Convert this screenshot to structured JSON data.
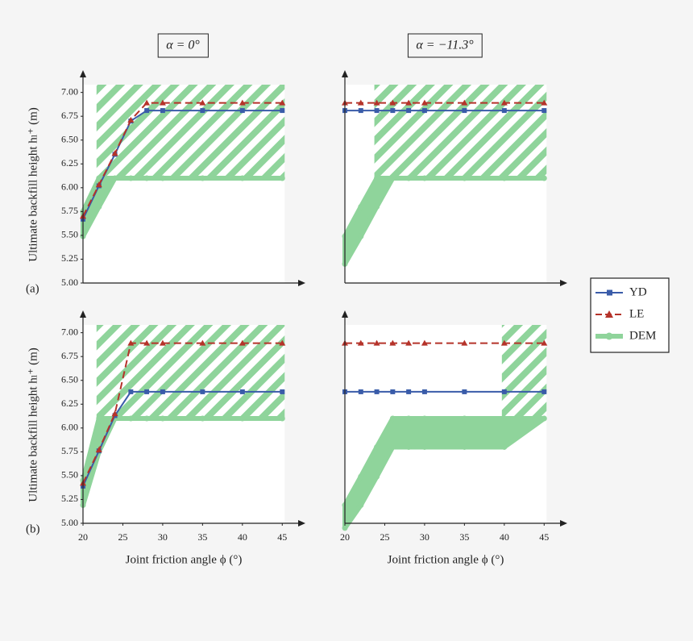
{
  "chart_data": [
    {
      "type": "line",
      "title": "α = 0°",
      "panel_label": "(a)",
      "y_label": "Ultimate backfill height hₗ⁺ (m)",
      "x": [
        20,
        22,
        24,
        26,
        28,
        30,
        35,
        40,
        45
      ],
      "xlim": [
        20,
        47.5
      ],
      "ylim": [
        5,
        7.2
      ],
      "yticks": [
        {
          "value": 5,
          "label": "5.00"
        },
        {
          "value": 5.25,
          "label": "5.25"
        },
        {
          "value": 5.5,
          "label": "5.50"
        },
        {
          "value": 5.75,
          "label": "5.75"
        },
        {
          "value": 6,
          "label": "6.00"
        },
        {
          "value": 6.25,
          "label": "6.25"
        },
        {
          "value": 6.5,
          "label": "6.50"
        },
        {
          "value": 6.75,
          "label": "6.75"
        },
        {
          "value": 7,
          "label": "7.00"
        }
      ],
      "legend": "right",
      "series": [
        {
          "name": "YD",
          "color": "#3a5ca9",
          "marker": "square",
          "values": [
            5.67,
            6.02,
            6.35,
            6.7,
            6.81,
            6.81,
            6.81,
            6.81,
            6.81
          ]
        },
        {
          "name": "LE",
          "color": "#b5332a",
          "marker": "triangle",
          "dash": true,
          "values": [
            5.7,
            6.03,
            6.36,
            6.71,
            6.89,
            6.89,
            6.89,
            6.89,
            6.89
          ]
        },
        {
          "name": "DEM",
          "color": "#8fd49b",
          "marker": "circle",
          "values": [
            5.49,
            5.8,
            6.1,
            6.1,
            6.1,
            6.1,
            6.1,
            6.1,
            6.1
          ],
          "upper": [
            5.75,
            6.1,
            null,
            null,
            null,
            null,
            null,
            null,
            null
          ]
        }
      ]
    },
    {
      "type": "line",
      "title": "α = −11.3°",
      "x": [
        20,
        22,
        24,
        26,
        28,
        30,
        35,
        40,
        45
      ],
      "xlim": [
        20,
        47.5
      ],
      "ylim": [
        5,
        7.2
      ],
      "series": [
        {
          "color": "#3a5ca9",
          "marker": "square",
          "values": [
            6.81,
            6.81,
            6.81,
            6.81,
            6.81,
            6.81,
            6.81,
            6.81,
            6.81
          ]
        },
        {
          "color": "#b5332a",
          "marker": "triangle",
          "dash": true,
          "values": [
            6.89,
            6.89,
            6.89,
            6.89,
            6.89,
            6.89,
            6.89,
            6.89,
            6.89
          ]
        },
        {
          "color": "#8fd49b",
          "marker": "circle",
          "values": [
            5.2,
            5.49,
            5.8,
            6.1,
            6.1,
            6.1,
            6.1,
            6.1,
            6.1
          ],
          "upper": [
            5.49,
            5.8,
            6.1,
            null,
            null,
            null,
            null,
            null,
            null
          ]
        }
      ]
    },
    {
      "type": "line",
      "panel_label": "(b)",
      "y_label": "Ultimate backfill height hₗ⁺ (m)",
      "x_label": "Joint friction angle ϕ (°)",
      "x": [
        20,
        22,
        24,
        26,
        28,
        30,
        35,
        40,
        45
      ],
      "xlim": [
        20,
        47.5
      ],
      "ylim": [
        5,
        7.2
      ],
      "xticks": [
        20,
        25,
        30,
        35,
        40,
        45
      ],
      "yticks": [
        {
          "value": 5,
          "label": "5.00"
        },
        {
          "value": 5.25,
          "label": "5.25"
        },
        {
          "value": 5.5,
          "label": "5.50"
        },
        {
          "value": 5.75,
          "label": "5.75"
        },
        {
          "value": 6,
          "label": "6.00"
        },
        {
          "value": 6.25,
          "label": "6.25"
        },
        {
          "value": 6.5,
          "label": "6.50"
        },
        {
          "value": 6.75,
          "label": "6.75"
        },
        {
          "value": 7,
          "label": "7.00"
        }
      ],
      "series": [
        {
          "color": "#3a5ca9",
          "marker": "square",
          "values": [
            5.39,
            5.76,
            6.13,
            6.38,
            6.38,
            6.38,
            6.38,
            6.38,
            6.38
          ]
        },
        {
          "color": "#b5332a",
          "marker": "triangle",
          "dash": true,
          "values": [
            5.42,
            5.77,
            6.15,
            6.89,
            6.89,
            6.89,
            6.89,
            6.89,
            6.89
          ]
        },
        {
          "color": "#8fd49b",
          "marker": "circle",
          "values": [
            5.19,
            5.75,
            6.1,
            6.1,
            6.1,
            6.1,
            6.1,
            6.1,
            6.1
          ],
          "upper": [
            5.45,
            6.1,
            null,
            null,
            null,
            null,
            null,
            null,
            null
          ]
        }
      ]
    },
    {
      "type": "line",
      "x_label": "Joint friction angle ϕ (°)",
      "x": [
        20,
        22,
        24,
        26,
        28,
        30,
        35,
        40,
        45
      ],
      "xlim": [
        20,
        47.5
      ],
      "ylim": [
        5,
        7.2
      ],
      "xticks": [
        20,
        25,
        30,
        35,
        40,
        45
      ],
      "series": [
        {
          "color": "#3a5ca9",
          "marker": "square",
          "values": [
            6.38,
            6.38,
            6.38,
            6.38,
            6.38,
            6.38,
            6.38,
            6.38,
            6.38
          ]
        },
        {
          "color": "#b5332a",
          "marker": "triangle",
          "dash": true,
          "values": [
            6.89,
            6.89,
            6.89,
            6.89,
            6.89,
            6.89,
            6.89,
            6.89,
            6.89
          ]
        },
        {
          "color": "#8fd49b",
          "marker": "circle",
          "values": [
            4.95,
            5.19,
            5.49,
            5.8,
            5.8,
            5.8,
            5.8,
            5.8,
            6.1
          ],
          "upper": [
            5.19,
            5.49,
            5.8,
            6.1,
            6.1,
            6.1,
            6.1,
            6.1,
            null
          ]
        }
      ]
    }
  ]
}
